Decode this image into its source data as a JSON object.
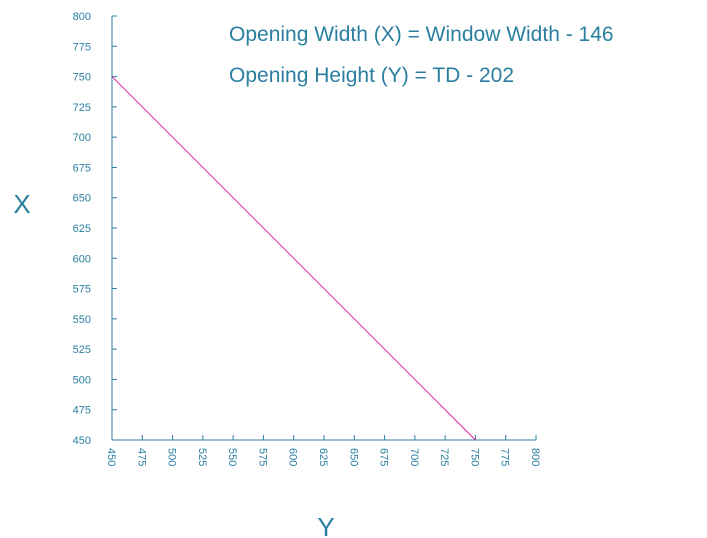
{
  "chart_data": {
    "type": "line",
    "title": "",
    "xlabel": "Y",
    "ylabel": "X",
    "xlim": [
      450,
      800
    ],
    "ylim": [
      450,
      800
    ],
    "x_ticks": [
      "450",
      "475",
      "500",
      "525",
      "550",
      "575",
      "600",
      "625",
      "650",
      "675",
      "700",
      "725",
      "750",
      "775",
      "800"
    ],
    "y_ticks": [
      "800",
      "775",
      "750",
      "725",
      "700",
      "675",
      "650",
      "625",
      "600",
      "575",
      "550",
      "525",
      "500",
      "475",
      "450"
    ],
    "series": [
      {
        "x": [
          450,
          750
        ],
        "y": [
          750,
          450
        ],
        "color": "#e8219a"
      }
    ],
    "annotations": [
      "Opening Width (X) = Window Width - 146",
      "Opening Height (Y) = TD - 202"
    ],
    "axis_color": "#2a7fa1",
    "grid": false
  }
}
